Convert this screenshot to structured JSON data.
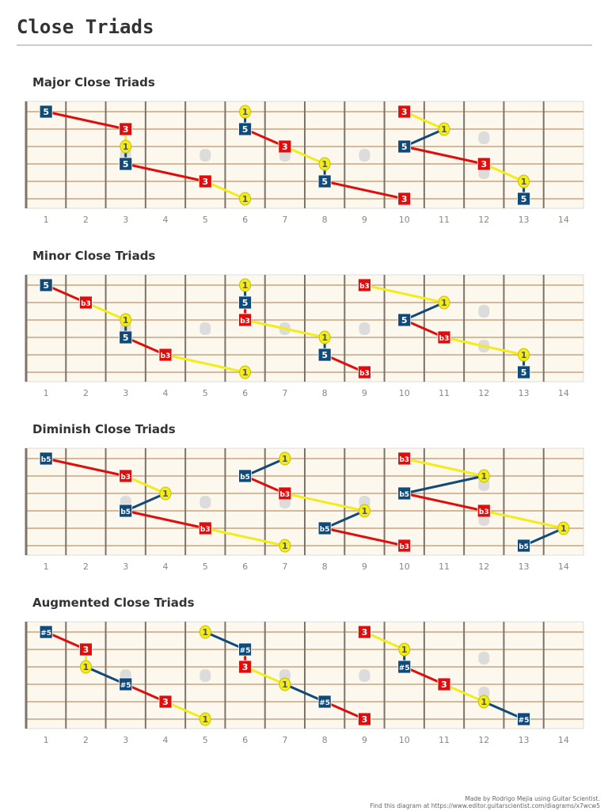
{
  "title": "Close Triads",
  "colors": {
    "root": "#f2ec1a",
    "third": "#e00d0d",
    "fifth": "#0f4a78",
    "fretboard": "#fdf8ee",
    "string": "#c9a27e",
    "fret": "#7e7368",
    "inlay": "#dcdcdc"
  },
  "fret_numbers": [
    "1",
    "2",
    "3",
    "4",
    "5",
    "6",
    "7",
    "8",
    "9",
    "10",
    "11",
    "12",
    "13",
    "14"
  ],
  "inlay_frets": [
    3,
    5,
    7,
    9,
    12
  ],
  "diagrams": [
    {
      "title": "Major Close Triads",
      "groups": [
        [
          {
            "fret": 1,
            "string": 1,
            "degree": "5"
          },
          {
            "fret": 3,
            "string": 2,
            "degree": "3"
          },
          {
            "fret": 3,
            "string": 3,
            "degree": "1"
          },
          {
            "fret": 3,
            "string": 4,
            "degree": "5"
          },
          {
            "fret": 5,
            "string": 5,
            "degree": "3"
          },
          {
            "fret": 6,
            "string": 6,
            "degree": "1"
          }
        ],
        [
          {
            "fret": 6,
            "string": 1,
            "degree": "1"
          },
          {
            "fret": 6,
            "string": 2,
            "degree": "5"
          },
          {
            "fret": 7,
            "string": 3,
            "degree": "3"
          },
          {
            "fret": 8,
            "string": 4,
            "degree": "1"
          },
          {
            "fret": 8,
            "string": 5,
            "degree": "5"
          },
          {
            "fret": 10,
            "string": 6,
            "degree": "3"
          }
        ],
        [
          {
            "fret": 10,
            "string": 1,
            "degree": "3"
          },
          {
            "fret": 11,
            "string": 2,
            "degree": "1"
          },
          {
            "fret": 10,
            "string": 3,
            "degree": "5"
          },
          {
            "fret": 12,
            "string": 4,
            "degree": "3"
          },
          {
            "fret": 13,
            "string": 5,
            "degree": "1"
          },
          {
            "fret": 13,
            "string": 6,
            "degree": "5"
          }
        ]
      ]
    },
    {
      "title": "Minor Close Triads",
      "groups": [
        [
          {
            "fret": 1,
            "string": 1,
            "degree": "5"
          },
          {
            "fret": 2,
            "string": 2,
            "degree": "b3"
          },
          {
            "fret": 3,
            "string": 3,
            "degree": "1"
          },
          {
            "fret": 3,
            "string": 4,
            "degree": "5"
          },
          {
            "fret": 4,
            "string": 5,
            "degree": "b3"
          },
          {
            "fret": 6,
            "string": 6,
            "degree": "1"
          }
        ],
        [
          {
            "fret": 6,
            "string": 1,
            "degree": "1"
          },
          {
            "fret": 6,
            "string": 2,
            "degree": "5"
          },
          {
            "fret": 6,
            "string": 3,
            "degree": "b3"
          },
          {
            "fret": 8,
            "string": 4,
            "degree": "1"
          },
          {
            "fret": 8,
            "string": 5,
            "degree": "5"
          },
          {
            "fret": 9,
            "string": 6,
            "degree": "b3"
          }
        ],
        [
          {
            "fret": 9,
            "string": 1,
            "degree": "b3"
          },
          {
            "fret": 11,
            "string": 2,
            "degree": "1"
          },
          {
            "fret": 10,
            "string": 3,
            "degree": "5"
          },
          {
            "fret": 11,
            "string": 4,
            "degree": "b3"
          },
          {
            "fret": 13,
            "string": 5,
            "degree": "1"
          },
          {
            "fret": 13,
            "string": 6,
            "degree": "5"
          }
        ]
      ]
    },
    {
      "title": "Diminish Close Triads",
      "groups": [
        [
          {
            "fret": 1,
            "string": 1,
            "degree": "b5"
          },
          {
            "fret": 3,
            "string": 2,
            "degree": "b3"
          },
          {
            "fret": 4,
            "string": 3,
            "degree": "1"
          },
          {
            "fret": 3,
            "string": 4,
            "degree": "b5"
          },
          {
            "fret": 5,
            "string": 5,
            "degree": "b3"
          },
          {
            "fret": 7,
            "string": 6,
            "degree": "1"
          }
        ],
        [
          {
            "fret": 7,
            "string": 1,
            "degree": "1"
          },
          {
            "fret": 6,
            "string": 2,
            "degree": "b5"
          },
          {
            "fret": 7,
            "string": 3,
            "degree": "b3"
          },
          {
            "fret": 9,
            "string": 4,
            "degree": "1"
          },
          {
            "fret": 8,
            "string": 5,
            "degree": "b5"
          },
          {
            "fret": 10,
            "string": 6,
            "degree": "b3"
          }
        ],
        [
          {
            "fret": 10,
            "string": 1,
            "degree": "b3"
          },
          {
            "fret": 12,
            "string": 2,
            "degree": "1"
          },
          {
            "fret": 10,
            "string": 3,
            "degree": "b5"
          },
          {
            "fret": 12,
            "string": 4,
            "degree": "b3"
          },
          {
            "fret": 14,
            "string": 5,
            "degree": "1"
          },
          {
            "fret": 13,
            "string": 6,
            "degree": "b5"
          }
        ]
      ]
    },
    {
      "title": "Augmented Close Triads",
      "groups": [
        [
          {
            "fret": 1,
            "string": 1,
            "degree": "#5"
          },
          {
            "fret": 2,
            "string": 2,
            "degree": "3"
          },
          {
            "fret": 2,
            "string": 3,
            "degree": "1"
          },
          {
            "fret": 3,
            "string": 4,
            "degree": "#5"
          },
          {
            "fret": 4,
            "string": 5,
            "degree": "3"
          },
          {
            "fret": 5,
            "string": 6,
            "degree": "1"
          }
        ],
        [
          {
            "fret": 5,
            "string": 1,
            "degree": "1"
          },
          {
            "fret": 6,
            "string": 2,
            "degree": "#5"
          },
          {
            "fret": 6,
            "string": 3,
            "degree": "3"
          },
          {
            "fret": 7,
            "string": 4,
            "degree": "1"
          },
          {
            "fret": 8,
            "string": 5,
            "degree": "#5"
          },
          {
            "fret": 9,
            "string": 6,
            "degree": "3"
          }
        ],
        [
          {
            "fret": 9,
            "string": 1,
            "degree": "3"
          },
          {
            "fret": 10,
            "string": 2,
            "degree": "1"
          },
          {
            "fret": 10,
            "string": 3,
            "degree": "#5"
          },
          {
            "fret": 11,
            "string": 4,
            "degree": "3"
          },
          {
            "fret": 12,
            "string": 5,
            "degree": "1"
          },
          {
            "fret": 13,
            "string": 6,
            "degree": "#5"
          }
        ]
      ]
    }
  ],
  "footer": {
    "line1": "Made by Rodrigo Mejia using Guitar Scientist.",
    "line2": "Find this diagram at https://www.editor.guitarscientist.com/diagrams/x7wcw5"
  }
}
